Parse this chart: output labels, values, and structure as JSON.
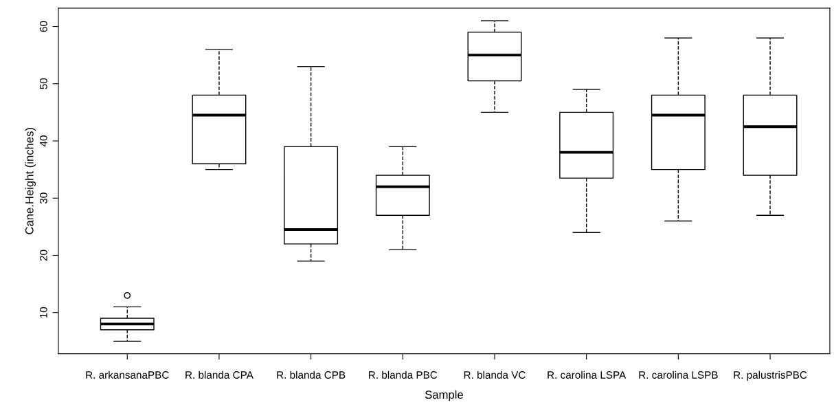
{
  "chart_data": {
    "type": "box",
    "xlabel": "Sample",
    "ylabel": "Cane.Height (inches)",
    "categories": [
      "R. arkansanaPBC",
      "R. blanda CPA",
      "R. blanda CPB",
      "R. blanda PBC",
      "R. blanda VC",
      "R. carolina LSPA",
      "R. carolina LSPB",
      "R. palustrisPBC"
    ],
    "boxes": [
      {
        "low": 5,
        "q1": 7,
        "median": 8,
        "q3": 9,
        "high": 11,
        "outliers": [
          13
        ]
      },
      {
        "low": 35,
        "q1": 36,
        "median": 44.5,
        "q3": 48,
        "high": 56
      },
      {
        "low": 19,
        "q1": 22,
        "median": 24.5,
        "q3": 39,
        "high": 53
      },
      {
        "low": 21,
        "q1": 27,
        "median": 32,
        "q3": 34,
        "high": 39
      },
      {
        "low": 45,
        "q1": 50.5,
        "median": 55,
        "q3": 59,
        "high": 61
      },
      {
        "low": 24,
        "q1": 33.5,
        "median": 38,
        "q3": 45,
        "high": 49
      },
      {
        "low": 26,
        "q1": 35,
        "median": 44.5,
        "q3": 48,
        "high": 58
      },
      {
        "low": 27,
        "q1": 34,
        "median": 42.5,
        "q3": 48,
        "high": 58
      }
    ],
    "ylim": [
      2.8,
      63.2
    ],
    "yticks": [
      10,
      20,
      30,
      40,
      50,
      60
    ],
    "grid": false,
    "legend": false,
    "line_style": "dashed"
  }
}
